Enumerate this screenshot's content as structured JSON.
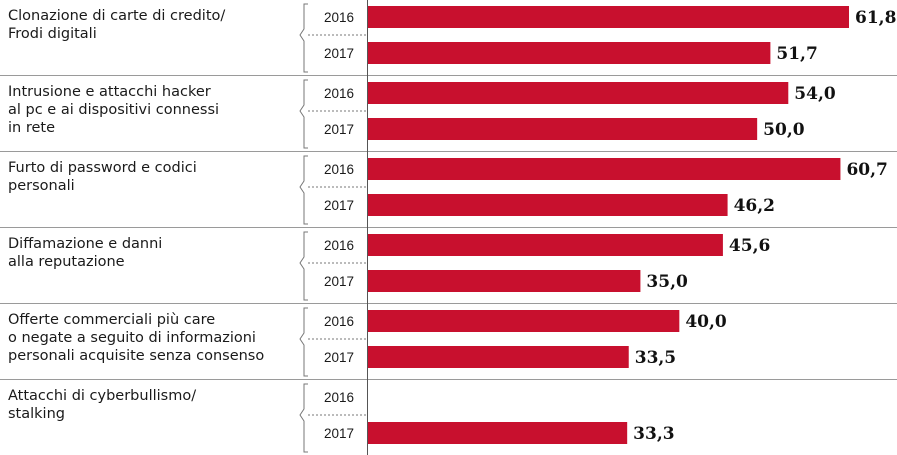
{
  "colors": {
    "bar": "#c8102e",
    "separator": "#9a9a9a",
    "text": "#1a1a1a"
  },
  "chart_data": {
    "type": "bar",
    "orientation": "horizontal",
    "grouping": "grouped",
    "value_format": "comma-decimal",
    "categories": [
      {
        "label_lines": [
          "Clonazione di carte di credito/",
          "Frodi digitali"
        ],
        "bars": [
          {
            "year": "2016",
            "value": 61.8,
            "label": "61,8"
          },
          {
            "year": "2017",
            "value": 51.7,
            "label": "51,7"
          }
        ]
      },
      {
        "label_lines": [
          "Intrusione e attacchi hacker",
          "al pc e ai dispositivi connessi",
          "in rete"
        ],
        "bars": [
          {
            "year": "2016",
            "value": 54.0,
            "label": "54,0"
          },
          {
            "year": "2017",
            "value": 50.0,
            "label": "50,0"
          }
        ]
      },
      {
        "label_lines": [
          "Furto di password e codici",
          "personali"
        ],
        "bars": [
          {
            "year": "2016",
            "value": 60.7,
            "label": "60,7"
          },
          {
            "year": "2017",
            "value": 46.2,
            "label": "46,2"
          }
        ]
      },
      {
        "label_lines": [
          "Diffamazione e danni",
          "alla reputazione"
        ],
        "bars": [
          {
            "year": "2016",
            "value": 45.6,
            "label": "45,6"
          },
          {
            "year": "2017",
            "value": 35.0,
            "label": "35,0"
          }
        ]
      },
      {
        "label_lines": [
          "Offerte commerciali più care",
          "o negate a seguito di informazioni",
          "personali acquisite senza consenso"
        ],
        "bars": [
          {
            "year": "2016",
            "value": 40.0,
            "label": "40,0"
          },
          {
            "year": "2017",
            "value": 33.5,
            "label": "33,5"
          }
        ]
      },
      {
        "label_lines": [
          "Attacchi di cyberbullismo/",
          "stalking"
        ],
        "bars": [
          {
            "year": "2016",
            "value": null,
            "label": ""
          },
          {
            "year": "2017",
            "value": 33.3,
            "label": "33,3"
          }
        ]
      }
    ],
    "xlim": [
      0,
      61.8
    ],
    "grid": false,
    "legend": "none"
  }
}
